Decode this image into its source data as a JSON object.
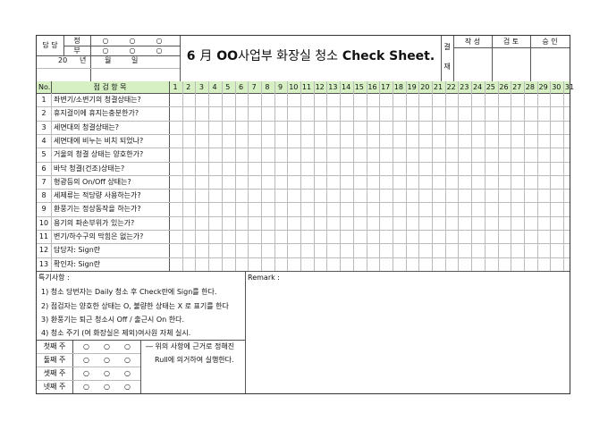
{
  "header": {
    "damdang_label": "담 당",
    "jeong_label": "정",
    "bu_label": "부",
    "circle_char": "○",
    "year_label": "20",
    "year_unit": "년",
    "month_unit": "월",
    "day_unit": "일",
    "title_month": "6",
    "title_month_unit": "月",
    "title_oo": "OO",
    "title_ko": "사업부 화장실 청소",
    "title_en": "Check Sheet.",
    "approval_label_1": "결",
    "approval_label_2": "재",
    "approval_cols": [
      "작 성",
      "검 토",
      "승 인"
    ]
  },
  "grid": {
    "no_label": "No.",
    "items_header": "점 검 항 목",
    "days": [
      "1",
      "2",
      "3",
      "4",
      "5",
      "6",
      "7",
      "8",
      "9",
      "10",
      "11",
      "12",
      "13",
      "14",
      "15",
      "16",
      "17",
      "18",
      "19",
      "20",
      "21",
      "22",
      "23",
      "24",
      "25",
      "26",
      "27",
      "28",
      "29",
      "30",
      "31"
    ],
    "rows": [
      {
        "no": "1",
        "item": "좌변기/소변기의 청결상태는?"
      },
      {
        "no": "2",
        "item": "휴지걸이에 휴지는충분한가?"
      },
      {
        "no": "3",
        "item": "세면대의 청결상태는?"
      },
      {
        "no": "4",
        "item": "세면대에 비누는 비치 되었나?"
      },
      {
        "no": "5",
        "item": "거울의 청결 상태는 양호한가?"
      },
      {
        "no": "6",
        "item": "바닥 청결(건조)상태는?"
      },
      {
        "no": "7",
        "item": "형광등의 On/Off 상태는?"
      },
      {
        "no": "8",
        "item": "세제류는 적당량 사용하는가?"
      },
      {
        "no": "9",
        "item": "환풍기는 정상동작을 하는가?"
      },
      {
        "no": "10",
        "item": "용기의 파손부위가 있는가?"
      },
      {
        "no": "11",
        "item": "변기/하수구의 막힘은 없는가?"
      },
      {
        "no": "12",
        "item": "담당자: Sign란"
      },
      {
        "no": "13",
        "item": "확인자: Sign란"
      }
    ]
  },
  "notes": {
    "title": "특기사항 :",
    "lines": [
      "1) 청소 당번자는 Daily 청소 후 Check란에 Sign를 한다.",
      "2) 점검자는 양호한 상태는 O, 불량한 상태는 X 로 표기를 한다",
      "3) 환풍기는 퇴근 청소시 Off / 출근시 On 한다.",
      "4) 청소 주기 (여 화장실은 제외)여사원 자체 실시."
    ],
    "weeks": [
      "첫째 주",
      "둘째 주",
      "셋째 주",
      "넷째 주"
    ],
    "week_note_1": "― 위의 사항에 근거로 정해진",
    "week_note_2": "Rull에 의거하여 실행한다."
  },
  "remark": {
    "label": "Remark :"
  },
  "colors": {
    "header_band": "#d6f0c4",
    "border": "#333333",
    "grid_line": "#bbbbbb"
  }
}
